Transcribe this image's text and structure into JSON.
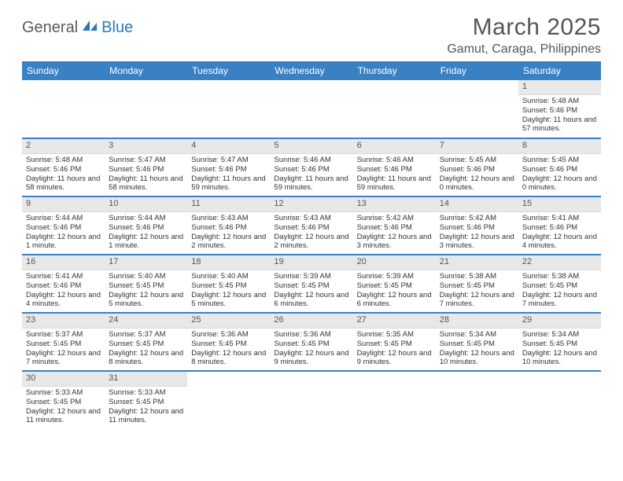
{
  "logo": {
    "part1": "General",
    "part2": "Blue"
  },
  "title": "March 2025",
  "location": "Gamut, Caraga, Philippines",
  "colors": {
    "header_bg": "#3a81c4",
    "header_text": "#ffffff",
    "daynum_bg": "#e8e8e8",
    "week_divider": "#3a81c4",
    "logo_gray": "#5a5a5a",
    "logo_blue": "#2a78b8",
    "text": "#333333",
    "background": "#ffffff"
  },
  "typography": {
    "title_fontsize": 30,
    "location_fontsize": 16,
    "dayheader_fontsize": 12,
    "body_fontsize": 9.5
  },
  "day_headers": [
    "Sunday",
    "Monday",
    "Tuesday",
    "Wednesday",
    "Thursday",
    "Friday",
    "Saturday"
  ],
  "weeks": [
    [
      null,
      null,
      null,
      null,
      null,
      null,
      {
        "n": "1",
        "sr": "Sunrise: 5:48 AM",
        "ss": "Sunset: 5:46 PM",
        "dl": "Daylight: 11 hours and 57 minutes."
      }
    ],
    [
      {
        "n": "2",
        "sr": "Sunrise: 5:48 AM",
        "ss": "Sunset: 5:46 PM",
        "dl": "Daylight: 11 hours and 58 minutes."
      },
      {
        "n": "3",
        "sr": "Sunrise: 5:47 AM",
        "ss": "Sunset: 5:46 PM",
        "dl": "Daylight: 11 hours and 58 minutes."
      },
      {
        "n": "4",
        "sr": "Sunrise: 5:47 AM",
        "ss": "Sunset: 5:46 PM",
        "dl": "Daylight: 11 hours and 59 minutes."
      },
      {
        "n": "5",
        "sr": "Sunrise: 5:46 AM",
        "ss": "Sunset: 5:46 PM",
        "dl": "Daylight: 11 hours and 59 minutes."
      },
      {
        "n": "6",
        "sr": "Sunrise: 5:46 AM",
        "ss": "Sunset: 5:46 PM",
        "dl": "Daylight: 11 hours and 59 minutes."
      },
      {
        "n": "7",
        "sr": "Sunrise: 5:45 AM",
        "ss": "Sunset: 5:46 PM",
        "dl": "Daylight: 12 hours and 0 minutes."
      },
      {
        "n": "8",
        "sr": "Sunrise: 5:45 AM",
        "ss": "Sunset: 5:46 PM",
        "dl": "Daylight: 12 hours and 0 minutes."
      }
    ],
    [
      {
        "n": "9",
        "sr": "Sunrise: 5:44 AM",
        "ss": "Sunset: 5:46 PM",
        "dl": "Daylight: 12 hours and 1 minute."
      },
      {
        "n": "10",
        "sr": "Sunrise: 5:44 AM",
        "ss": "Sunset: 5:46 PM",
        "dl": "Daylight: 12 hours and 1 minute."
      },
      {
        "n": "11",
        "sr": "Sunrise: 5:43 AM",
        "ss": "Sunset: 5:46 PM",
        "dl": "Daylight: 12 hours and 2 minutes."
      },
      {
        "n": "12",
        "sr": "Sunrise: 5:43 AM",
        "ss": "Sunset: 5:46 PM",
        "dl": "Daylight: 12 hours and 2 minutes."
      },
      {
        "n": "13",
        "sr": "Sunrise: 5:42 AM",
        "ss": "Sunset: 5:46 PM",
        "dl": "Daylight: 12 hours and 3 minutes."
      },
      {
        "n": "14",
        "sr": "Sunrise: 5:42 AM",
        "ss": "Sunset: 5:46 PM",
        "dl": "Daylight: 12 hours and 3 minutes."
      },
      {
        "n": "15",
        "sr": "Sunrise: 5:41 AM",
        "ss": "Sunset: 5:46 PM",
        "dl": "Daylight: 12 hours and 4 minutes."
      }
    ],
    [
      {
        "n": "16",
        "sr": "Sunrise: 5:41 AM",
        "ss": "Sunset: 5:46 PM",
        "dl": "Daylight: 12 hours and 4 minutes."
      },
      {
        "n": "17",
        "sr": "Sunrise: 5:40 AM",
        "ss": "Sunset: 5:45 PM",
        "dl": "Daylight: 12 hours and 5 minutes."
      },
      {
        "n": "18",
        "sr": "Sunrise: 5:40 AM",
        "ss": "Sunset: 5:45 PM",
        "dl": "Daylight: 12 hours and 5 minutes."
      },
      {
        "n": "19",
        "sr": "Sunrise: 5:39 AM",
        "ss": "Sunset: 5:45 PM",
        "dl": "Daylight: 12 hours and 6 minutes."
      },
      {
        "n": "20",
        "sr": "Sunrise: 5:39 AM",
        "ss": "Sunset: 5:45 PM",
        "dl": "Daylight: 12 hours and 6 minutes."
      },
      {
        "n": "21",
        "sr": "Sunrise: 5:38 AM",
        "ss": "Sunset: 5:45 PM",
        "dl": "Daylight: 12 hours and 7 minutes."
      },
      {
        "n": "22",
        "sr": "Sunrise: 5:38 AM",
        "ss": "Sunset: 5:45 PM",
        "dl": "Daylight: 12 hours and 7 minutes."
      }
    ],
    [
      {
        "n": "23",
        "sr": "Sunrise: 5:37 AM",
        "ss": "Sunset: 5:45 PM",
        "dl": "Daylight: 12 hours and 7 minutes."
      },
      {
        "n": "24",
        "sr": "Sunrise: 5:37 AM",
        "ss": "Sunset: 5:45 PM",
        "dl": "Daylight: 12 hours and 8 minutes."
      },
      {
        "n": "25",
        "sr": "Sunrise: 5:36 AM",
        "ss": "Sunset: 5:45 PM",
        "dl": "Daylight: 12 hours and 8 minutes."
      },
      {
        "n": "26",
        "sr": "Sunrise: 5:36 AM",
        "ss": "Sunset: 5:45 PM",
        "dl": "Daylight: 12 hours and 9 minutes."
      },
      {
        "n": "27",
        "sr": "Sunrise: 5:35 AM",
        "ss": "Sunset: 5:45 PM",
        "dl": "Daylight: 12 hours and 9 minutes."
      },
      {
        "n": "28",
        "sr": "Sunrise: 5:34 AM",
        "ss": "Sunset: 5:45 PM",
        "dl": "Daylight: 12 hours and 10 minutes."
      },
      {
        "n": "29",
        "sr": "Sunrise: 5:34 AM",
        "ss": "Sunset: 5:45 PM",
        "dl": "Daylight: 12 hours and 10 minutes."
      }
    ],
    [
      {
        "n": "30",
        "sr": "Sunrise: 5:33 AM",
        "ss": "Sunset: 5:45 PM",
        "dl": "Daylight: 12 hours and 11 minutes."
      },
      {
        "n": "31",
        "sr": "Sunrise: 5:33 AM",
        "ss": "Sunset: 5:45 PM",
        "dl": "Daylight: 12 hours and 11 minutes."
      },
      null,
      null,
      null,
      null,
      null
    ]
  ]
}
